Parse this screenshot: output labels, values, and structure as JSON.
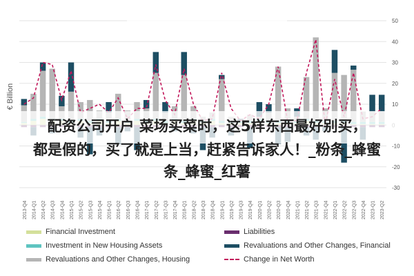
{
  "overlay": {
    "line1": "配资公司开户 菜场买菜时，这5样东西最好别买，",
    "line2": "都是假的，买了就是上当，赶紧告诉家人！_粉条_蜂蜜",
    "line3": "条_蜂蜜_红薯"
  },
  "chart_data": {
    "type": "bar",
    "ylabel": "€ Billion",
    "ylim": [
      -30,
      50
    ],
    "yticks": [
      50,
      40,
      30,
      20,
      10,
      0,
      -10,
      -20,
      -30
    ],
    "categories": [
      "2013-Q4",
      "2014-Q1",
      "2014-Q2",
      "2014-Q3",
      "2014-Q4",
      "2015-Q1",
      "2015-Q2",
      "2015-Q3",
      "2015-Q4",
      "2016-Q1",
      "2016-Q2",
      "2016-Q3",
      "2016-Q4",
      "2017-Q1",
      "2017-Q2",
      "2017-Q3",
      "2017-Q4",
      "2018-Q1",
      "2018-Q2",
      "2018-Q3",
      "2018-Q4",
      "2019-Q1",
      "2019-Q2",
      "2019-Q3",
      "2019-Q4",
      "2020-Q1",
      "2020-Q2",
      "2020-Q3",
      "2020-Q4",
      "2021-Q1",
      "2021-Q2",
      "2021-Q3",
      "2021-Q4",
      "2022-Q1",
      "2022-Q2",
      "2022-Q3",
      "2022-Q4",
      "2023-Q1",
      "2023-Q2"
    ],
    "series": [
      {
        "name": "Financial Investment",
        "color": "#d4e09b",
        "values": [
          1,
          2,
          3,
          2,
          2,
          1,
          2,
          1,
          2,
          1,
          2,
          1,
          2,
          1,
          2,
          1,
          2,
          1,
          2,
          1,
          2,
          1,
          1,
          1,
          1,
          2,
          1,
          1,
          1,
          1,
          2,
          1,
          1,
          1,
          1,
          0.5,
          0.5,
          0.5,
          0.5
        ]
      },
      {
        "name": "Investment in New Housing Assets",
        "color": "#5ec4c0",
        "values": [
          0.5,
          1,
          1,
          1,
          1,
          1,
          1,
          1,
          1,
          1,
          1,
          1,
          1,
          1,
          1,
          1,
          1,
          1,
          1,
          1,
          1,
          1,
          1,
          1,
          1,
          1,
          1,
          1,
          1,
          1,
          1,
          1,
          1,
          1,
          1,
          1,
          1,
          1,
          1
        ]
      },
      {
        "name": "Revaluations and Other Changes, Housing",
        "color": "#b5b5b5",
        "values": [
          8,
          12,
          22,
          24,
          6,
          14,
          8,
          10,
          4,
          4,
          12,
          5,
          8,
          6,
          22,
          4,
          6,
          22,
          6,
          2,
          3,
          20,
          2,
          0,
          3,
          1,
          4,
          26,
          6,
          2,
          20,
          40,
          6,
          23,
          22,
          25,
          5,
          5,
          5
        ]
      },
      {
        "name": "Liabilities",
        "color": "#6a2e6e",
        "values": [
          -1,
          -1,
          -1,
          -1,
          -1,
          -1,
          -1,
          -1,
          -1,
          -1,
          -1,
          -1,
          -1,
          -1,
          -1,
          -1,
          -1,
          -1,
          -1,
          -1,
          -1,
          -1,
          -1,
          -1,
          -1,
          -1,
          -1,
          -1,
          -1,
          -1,
          -1,
          -1,
          -1,
          -1,
          -1,
          -1,
          -1,
          -1,
          -1
        ]
      },
      {
        "name": "Revaluations and Other Changes, Financial",
        "color": "#1d4e63",
        "values": [
          3,
          -4,
          4,
          -3,
          5,
          14,
          -5,
          -13,
          -4,
          5,
          -8,
          -2,
          -11,
          4,
          10,
          5,
          -2,
          11,
          -3,
          -11,
          -5,
          2,
          -4,
          1,
          -10,
          7,
          4,
          -8,
          -7,
          4,
          -4,
          -6,
          -2,
          11,
          -17,
          2,
          -6,
          8,
          8
        ]
      },
      {
        "name": "Change in Net Worth",
        "color": "#c2185b",
        "dashed": true,
        "values": [
          10,
          13,
          30,
          29,
          12,
          26,
          6,
          8,
          10,
          6,
          13,
          3,
          8,
          8,
          29,
          12,
          5,
          27,
          10,
          2,
          3,
          25,
          8,
          2,
          5,
          3,
          10,
          28,
          2,
          2,
          25,
          41,
          0,
          22,
          4,
          25,
          3,
          4,
          8
        ]
      }
    ],
    "legend_position": "bottom"
  }
}
